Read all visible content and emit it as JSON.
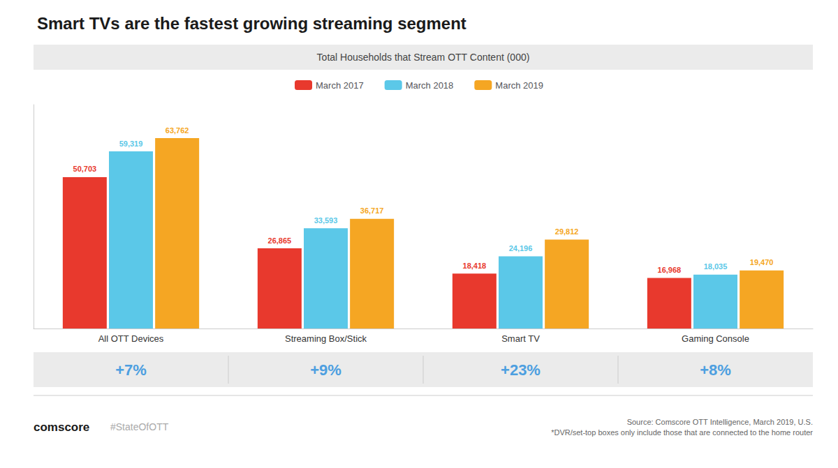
{
  "chart_data": {
    "type": "bar",
    "title": "Smart TVs are the fastest growing streaming segment",
    "subtitle": "Total Households that Stream OTT Content (000)",
    "categories": [
      "All OTT Devices",
      "Streaming Box/Stick",
      "Smart TV",
      "Gaming Console"
    ],
    "series": [
      {
        "name": "March 2017",
        "color": "#E8392D",
        "values": [
          50703,
          26865,
          18418,
          16968
        ],
        "value_labels": [
          "50,703",
          "26,865",
          "18,418",
          "16,968"
        ]
      },
      {
        "name": "March 2018",
        "color": "#5BC8E8",
        "values": [
          59319,
          33593,
          24196,
          18035
        ],
        "value_labels": [
          "59,319",
          "33,593",
          "24,196",
          "18,035"
        ]
      },
      {
        "name": "March 2019",
        "color": "#F5A623",
        "values": [
          63762,
          36717,
          29812,
          19470
        ],
        "value_labels": [
          "63,762",
          "36,717",
          "29,812",
          "19,470"
        ]
      }
    ],
    "ylim": [
      0,
      75000
    ],
    "grid": false,
    "legend": "top",
    "data_labels": true,
    "tick_labels": "x",
    "annotations": [
      {
        "category": "All OTT Devices",
        "text": "+7%",
        "color": "#4D9FE0"
      },
      {
        "category": "Streaming Box/Stick",
        "text": "+9%",
        "color": "#4D9FE0"
      },
      {
        "category": "Smart TV",
        "text": "+23%",
        "color": "#4D9FE0"
      },
      {
        "category": "Gaming Console",
        "text": "+8%",
        "color": "#4D9FE0"
      },
      {
        "text": "comscore"
      },
      {
        "text": "#StateOfOTT"
      },
      {
        "text": "Source: Comscore OTT Intelligence, March 2019, U.S.\n*DVR/set-top boxes only include those that are connected to the home router"
      }
    ]
  }
}
